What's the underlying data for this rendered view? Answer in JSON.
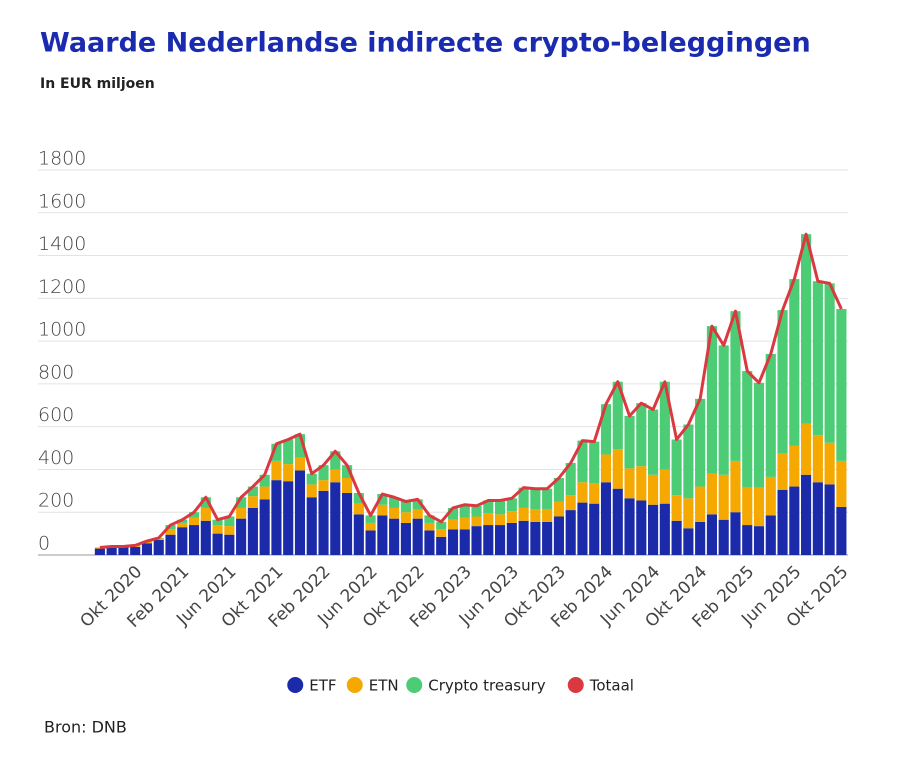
{
  "chart_data": {
    "type": "bar",
    "stacked": true,
    "title": "Waarde Nederlandse indirecte crypto-beleggingen",
    "subtitle": "In EUR miljoen",
    "source": "Bron: DNB",
    "categories": [
      null,
      null,
      null,
      "Okt 2020",
      null,
      null,
      null,
      "Feb 2021",
      null,
      null,
      null,
      "Jun 2021",
      null,
      null,
      null,
      "Okt 2021",
      null,
      null,
      null,
      "Feb 2022",
      null,
      null,
      null,
      "Jun 2022",
      null,
      null,
      null,
      "Okt 2022",
      null,
      null,
      null,
      "Feb 2023",
      null,
      null,
      null,
      "Jun 2023",
      null,
      null,
      null,
      "Okt 2023",
      null,
      null,
      null,
      "Feb 2024",
      null,
      null,
      null,
      "Jun 2024",
      null,
      null,
      null,
      "Okt 2024",
      null,
      null,
      null,
      "Feb 2025",
      null,
      null,
      null,
      "Jun 2025",
      null,
      null,
      null,
      "Okt 2025"
    ],
    "series": [
      {
        "name": "ETF",
        "color": "#1a2aa8",
        "values": [
          30,
          35,
          35,
          38,
          55,
          70,
          95,
          130,
          140,
          160,
          100,
          95,
          170,
          220,
          260,
          350,
          345,
          395,
          270,
          300,
          340,
          290,
          190,
          115,
          185,
          170,
          150,
          170,
          115,
          85,
          120,
          120,
          135,
          140,
          140,
          150,
          160,
          155,
          155,
          180,
          210,
          245,
          240,
          340,
          310,
          265,
          255,
          235,
          240,
          160,
          125,
          155,
          190,
          165,
          200,
          140,
          135,
          185,
          305,
          320,
          375,
          340,
          330,
          225
        ]
      },
      {
        "name": "ETN",
        "color": "#f5a800",
        "values": [
          3,
          3,
          3,
          4,
          8,
          8,
          25,
          20,
          35,
          60,
          40,
          40,
          50,
          55,
          60,
          90,
          80,
          60,
          60,
          50,
          60,
          70,
          50,
          35,
          50,
          50,
          50,
          45,
          35,
          35,
          45,
          55,
          45,
          55,
          50,
          55,
          60,
          60,
          60,
          70,
          70,
          95,
          95,
          130,
          185,
          140,
          160,
          140,
          160,
          120,
          140,
          165,
          190,
          210,
          240,
          175,
          180,
          180,
          170,
          190,
          240,
          220,
          195,
          215
        ]
      },
      {
        "name": "Crypto treasury",
        "color": "#4ccc74",
        "values": [
          2,
          2,
          2,
          3,
          2,
          2,
          20,
          15,
          25,
          50,
          25,
          45,
          50,
          45,
          55,
          80,
          115,
          110,
          50,
          70,
          85,
          60,
          50,
          35,
          50,
          50,
          50,
          45,
          35,
          35,
          55,
          60,
          50,
          60,
          65,
          60,
          95,
          95,
          95,
          110,
          150,
          195,
          195,
          235,
          315,
          245,
          295,
          305,
          410,
          260,
          345,
          410,
          690,
          605,
          700,
          545,
          490,
          575,
          670,
          780,
          885,
          720,
          745,
          710
        ]
      },
      {
        "name": "Totaal",
        "color": "#d9393f",
        "type": "line",
        "values": [
          35,
          40,
          40,
          45,
          65,
          80,
          140,
          165,
          200,
          270,
          165,
          180,
          270,
          320,
          375,
          520,
          540,
          565,
          380,
          420,
          485,
          420,
          290,
          185,
          285,
          270,
          250,
          260,
          185,
          155,
          220,
          235,
          230,
          255,
          255,
          265,
          315,
          310,
          310,
          360,
          430,
          535,
          530,
          705,
          810,
          650,
          710,
          680,
          810,
          540,
          610,
          730,
          1070,
          980,
          1140,
          860,
          805,
          940,
          1145,
          1290,
          1500,
          1280,
          1270,
          1150
        ]
      }
    ],
    "ylim": [
      0,
      1800
    ],
    "yticks": [
      0,
      200,
      400,
      600,
      800,
      1000,
      1200,
      1400,
      1600,
      1800
    ],
    "grid": true
  }
}
